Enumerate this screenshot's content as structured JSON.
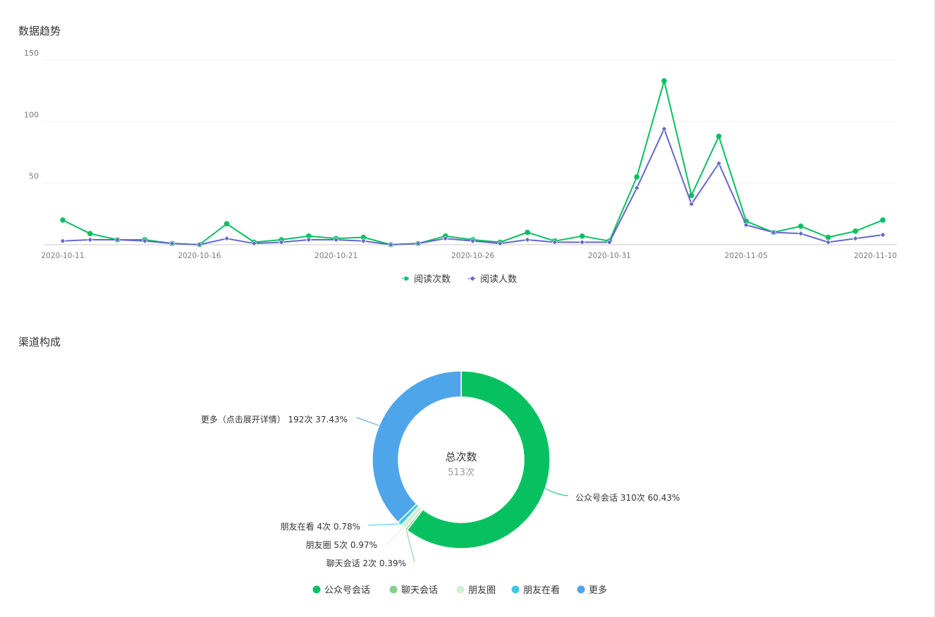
{
  "sections": {
    "trend_title": "数据趋势",
    "channel_title": "渠道构成"
  },
  "chart_data": [
    {
      "type": "line",
      "title": "数据趋势",
      "x": [
        "2020-10-11",
        "2020-10-12",
        "2020-10-13",
        "2020-10-14",
        "2020-10-15",
        "2020-10-16",
        "2020-10-17",
        "2020-10-18",
        "2020-10-19",
        "2020-10-20",
        "2020-10-21",
        "2020-10-22",
        "2020-10-23",
        "2020-10-24",
        "2020-10-25",
        "2020-10-26",
        "2020-10-27",
        "2020-10-28",
        "2020-10-29",
        "2020-10-30",
        "2020-10-31",
        "2020-11-01",
        "2020-11-02",
        "2020-11-03",
        "2020-11-04",
        "2020-11-05",
        "2020-11-06",
        "2020-11-07",
        "2020-11-08",
        "2020-11-09",
        "2020-11-10"
      ],
      "x_tick_labels": [
        "2020-10-11",
        "2020-10-16",
        "2020-10-21",
        "2020-10-26",
        "2020-10-31",
        "2020-11-05",
        "2020-11-10"
      ],
      "y_ticks": [
        50,
        100,
        150
      ],
      "ylim": [
        0,
        150
      ],
      "grid": true,
      "legend_position": "bottom",
      "series": [
        {
          "name": "阅读次数",
          "color": "#07c160",
          "marker": "circle",
          "values": [
            20,
            9,
            4,
            4,
            1,
            0,
            17,
            2,
            4,
            7,
            5,
            6,
            0,
            1,
            7,
            4,
            2,
            10,
            3,
            7,
            3,
            55,
            133,
            40,
            88,
            19,
            10,
            15,
            6,
            11,
            20
          ]
        },
        {
          "name": "阅读人数",
          "color": "#6467cc",
          "marker": "diamond",
          "values": [
            3,
            4,
            4,
            3,
            1,
            0,
            5,
            1,
            2,
            4,
            4,
            3,
            0,
            1,
            5,
            3,
            1,
            4,
            2,
            2,
            2,
            46,
            94,
            33,
            66,
            16,
            10,
            9,
            2,
            5,
            8
          ]
        }
      ]
    },
    {
      "type": "pie",
      "title": "渠道构成",
      "center_label": "总次数",
      "center_value": "513次",
      "legend_position": "bottom",
      "slices": [
        {
          "name": "公众号会话",
          "value": 310,
          "percent": 60.43,
          "color": "#07c160",
          "label": "公众号会话 310次 60.43%"
        },
        {
          "name": "聊天会话",
          "value": 2,
          "percent": 0.39,
          "color": "#85d08a",
          "label": "聊天会话 2次 0.39%"
        },
        {
          "name": "朋友圈",
          "value": 5,
          "percent": 0.97,
          "color": "#d2efd2",
          "label": "朋友圈 5次 0.97%"
        },
        {
          "name": "朋友在看",
          "value": 4,
          "percent": 0.78,
          "color": "#3cc8e6",
          "label": "朋友在看 4次 0.78%"
        },
        {
          "name": "更多",
          "value": 192,
          "percent": 37.43,
          "color": "#4fa5ea",
          "label": "更多（点击展开详情） 192次 37.43%"
        }
      ]
    }
  ]
}
